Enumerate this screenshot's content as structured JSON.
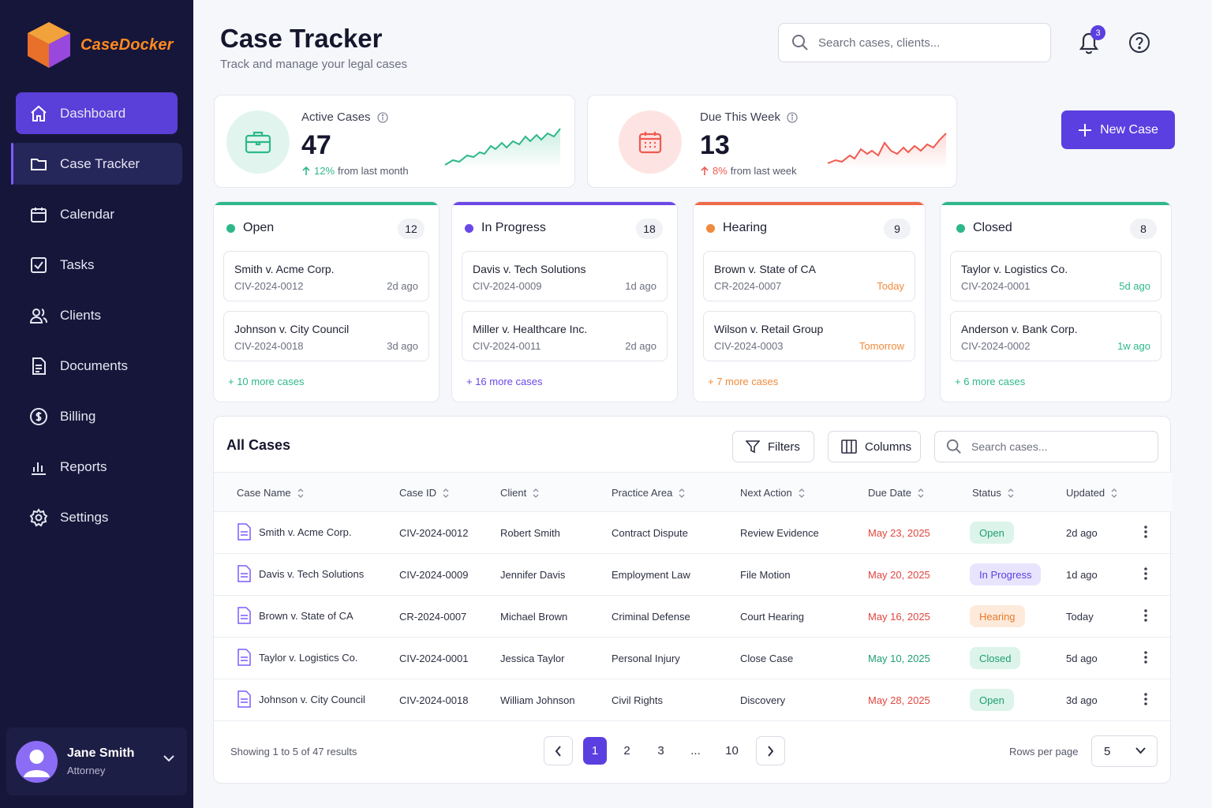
{
  "app": {
    "name": "CaseDocker",
    "title": "Case Tracker",
    "subtitle": "Track and manage your legal cases"
  },
  "search": {
    "placeholder": "Search cases, clients..."
  },
  "notifications": {
    "count": "3"
  },
  "sidebar": {
    "items": [
      {
        "label": "Dashboard",
        "icon": "home-icon"
      },
      {
        "label": "Case Tracker",
        "icon": "folder-icon"
      },
      {
        "label": "Calendar",
        "icon": "calendar-icon"
      },
      {
        "label": "Tasks",
        "icon": "checkbox-icon"
      },
      {
        "label": "Clients",
        "icon": "users-icon"
      },
      {
        "label": "Documents",
        "icon": "document-icon"
      },
      {
        "label": "Billing",
        "icon": "dollar-icon"
      },
      {
        "label": "Reports",
        "icon": "bar-chart-icon"
      },
      {
        "label": "Settings",
        "icon": "gear-icon"
      }
    ],
    "user": {
      "name": "Jane Smith",
      "role": "Attorney"
    }
  },
  "stats": [
    {
      "label": "Active Cases",
      "value": "47",
      "trend_value": "12%",
      "trend_text": "from last month",
      "color": "#2eb88a"
    },
    {
      "label": "Due This Week",
      "value": "13",
      "trend_value": "8%",
      "trend_text": "from last week",
      "color": "#ef5a4f"
    }
  ],
  "new_case_label": "New Case",
  "kanban": [
    {
      "title": "Open",
      "count": "12",
      "color": "#2eb88a",
      "cards": [
        {
          "title": "Smith v. Acme Corp.",
          "id": "CIV-2024-0012",
          "age": "2d ago"
        },
        {
          "title": "Johnson v. City Council",
          "id": "CIV-2024-0018",
          "age": "3d ago"
        }
      ],
      "more": "+ 10 more cases"
    },
    {
      "title": "In Progress",
      "count": "18",
      "color": "#6b48e8",
      "cards": [
        {
          "title": "Davis v. Tech Solutions",
          "id": "CIV-2024-0009",
          "age": "1d ago"
        },
        {
          "title": "Miller v. Healthcare Inc.",
          "id": "CIV-2024-0011",
          "age": "2d ago"
        }
      ],
      "more": "+ 16 more cases"
    },
    {
      "title": "Hearing",
      "count": "9",
      "color": "#f08a3c",
      "cards": [
        {
          "title": "Brown v. State of CA",
          "id": "CR-2024-0007",
          "age": "Today"
        },
        {
          "title": "Wilson v. Retail Group",
          "id": "CIV-2024-0003",
          "age": "Tomorrow"
        }
      ],
      "more": "+ 7 more cases"
    },
    {
      "title": "Closed",
      "count": "8",
      "color": "#2eb88a",
      "cards": [
        {
          "title": "Taylor v. Logistics Co.",
          "id": "CIV-2024-0001",
          "age": "5d ago"
        },
        {
          "title": "Anderson v. Bank Corp.",
          "id": "CIV-2024-0002",
          "age": "1w ago"
        }
      ],
      "more": "+ 6 more cases"
    }
  ],
  "table": {
    "title": "All Cases",
    "filters_label": "Filters",
    "columns_label": "Columns",
    "search_placeholder": "Search cases...",
    "headers": [
      "Case Name",
      "Case ID",
      "Client",
      "Practice Area",
      "Next Action",
      "Due Date",
      "Status",
      "Updated"
    ],
    "rows": [
      {
        "name": "Smith v. Acme Corp.",
        "id": "CIV-2024-0012",
        "client": "Robert Smith",
        "area": "Contract Dispute",
        "next": "Review Evidence",
        "due": "May 23, 2025",
        "status": "Open",
        "updated": "2d ago"
      },
      {
        "name": "Davis v. Tech Solutions",
        "id": "CIV-2024-0009",
        "client": "Jennifer Davis",
        "area": "Employment Law",
        "next": "File Motion",
        "due": "May 20, 2025",
        "status": "In Progress",
        "updated": "1d ago"
      },
      {
        "name": "Brown v. State of CA",
        "id": "CR-2024-0007",
        "client": "Michael Brown",
        "area": "Criminal Defense",
        "next": "Court Hearing",
        "due": "May 16, 2025",
        "status": "Hearing",
        "updated": "Today"
      },
      {
        "name": "Taylor v. Logistics Co.",
        "id": "CIV-2024-0001",
        "client": "Jessica Taylor",
        "area": "Personal Injury",
        "next": "Close Case",
        "due": "May 10, 2025",
        "status": "Closed",
        "updated": "5d ago"
      },
      {
        "name": "Johnson v. City Council",
        "id": "CIV-2024-0018",
        "client": "William Johnson",
        "area": "Civil Rights",
        "next": "Discovery",
        "due": "May 28, 2025",
        "status": "Open",
        "updated": "3d ago"
      }
    ],
    "showing": "Showing 1 to 5 of 47 results",
    "pages": [
      "1",
      "2",
      "3",
      "...",
      "10"
    ],
    "rows_per_page_label": "Rows per page",
    "rows_per_page": "5"
  },
  "colors": {
    "accent": "#5b3fe0",
    "sidebar": "#16163a",
    "open": "#2eb88a",
    "progress": "#6b48e8",
    "hearing": "#f08a3c",
    "due": "#e0463f"
  }
}
